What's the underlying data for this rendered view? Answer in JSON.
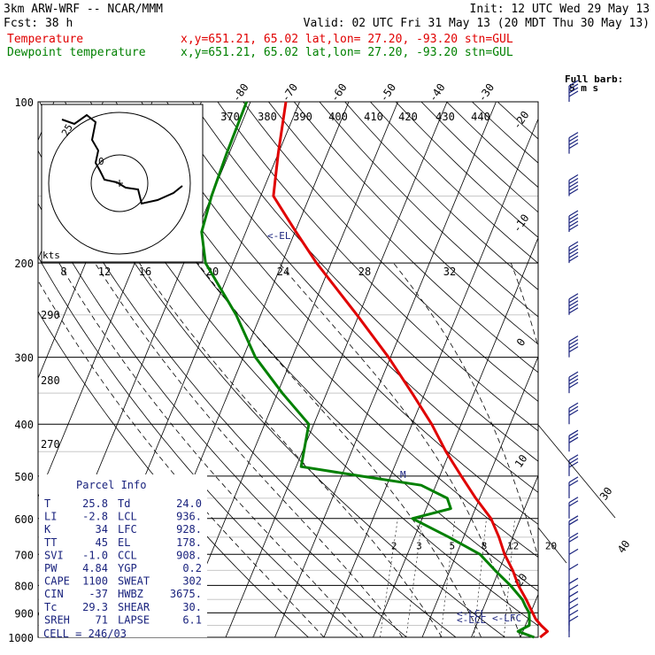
{
  "header": {
    "model": "3km ARW-WRF -- NCAR/MMM",
    "forecast": "Fcst:   38 h",
    "init": "Init: 12 UTC Wed 29 May 13",
    "valid": "Valid: 02 UTC Fri 31 May 13 (20 MDT Thu 30 May 13)"
  },
  "legend": [
    {
      "name": "Temperature",
      "info": "x,y=651.21, 65.02   lat,lon= 27.20, -93.20  stn=GUL",
      "color": "#e00000"
    },
    {
      "name": "Dewpoint temperature",
      "info": "x,y=651.21, 65.02   lat,lon= 27.20, -93.20  stn=GUL",
      "color": "#008000"
    }
  ],
  "barb_legend": {
    "title": "Full barb:",
    "unit": "5 m s"
  },
  "hodograph": {
    "unit": "kts",
    "ring_labels": [
      "25",
      "0"
    ],
    "colors": {
      "ring": "#000000",
      "trace": "#000000"
    }
  },
  "mixing_ratio_labels": [
    "2",
    "3",
    "5",
    "8",
    "12",
    "20"
  ],
  "theta_top_labels": [
    "370",
    "380",
    "390",
    "400",
    "410",
    "420",
    "430",
    "440"
  ],
  "theta_mid_labels": [
    "8",
    "12",
    "16",
    "20",
    "24",
    "28",
    "32"
  ],
  "theta_left_labels": [
    "290",
    "280",
    "270"
  ],
  "el_marker": "<-EL",
  "lcl_markers": [
    "<-LCL",
    "<-LCL",
    "<-LFC"
  ],
  "parcel_marker": "M",
  "parcel_info": {
    "title": "Parcel Info",
    "rows": [
      [
        "T",
        "25.8",
        "Td",
        "24.0"
      ],
      [
        "LI",
        "-2.8",
        "LCL",
        "936."
      ],
      [
        "K",
        "34",
        "LFC",
        "928."
      ],
      [
        "TT",
        "45",
        "EL",
        "178."
      ],
      [
        "SVI",
        "-1.0",
        "CCL",
        "908."
      ],
      [
        "PW",
        "4.84",
        "YGP",
        "0.2"
      ],
      [
        "CAPE",
        "1100",
        "SWEAT",
        "302"
      ],
      [
        "CIN",
        "-37",
        "HWBZ",
        "3675."
      ],
      [
        "Tc",
        "29.3",
        "SHEAR",
        "30."
      ],
      [
        "SREH",
        "71",
        "LAPSE",
        "6.1"
      ]
    ],
    "cell": "CELL = 246/03"
  },
  "chart_data": {
    "type": "line",
    "title": "",
    "xlabel": "",
    "ylabel": "",
    "pressure_levels": [
      100,
      200,
      300,
      400,
      500,
      600,
      700,
      800,
      900,
      1000
    ],
    "pressure_labels": [
      "100",
      "200",
      "300",
      "400",
      "500",
      "600",
      "700",
      "800",
      "900",
      "1000"
    ],
    "skew_temp_labels": [
      "-80",
      "-70",
      "-60",
      "-50",
      "-40",
      "-30",
      "-20",
      "-10",
      "0",
      "10",
      "20",
      "30",
      "40"
    ],
    "ylim": [
      1000,
      100
    ],
    "series": [
      {
        "name": "Temperature",
        "color": "#e00000",
        "pressure": [
          1000,
          975,
          950,
          925,
          900,
          875,
          850,
          800,
          750,
          700,
          650,
          600,
          550,
          500,
          450,
          400,
          350,
          300,
          250,
          200,
          175,
          150,
          125,
          100
        ],
        "temp": [
          24.0,
          25.0,
          23.2,
          21.6,
          20.4,
          19.2,
          18.0,
          15.2,
          12.8,
          9.8,
          7.2,
          4.0,
          -0.8,
          -5.6,
          -10.8,
          -16.0,
          -22.6,
          -30.4,
          -40.4,
          -53.0,
          -59.8,
          -67.4,
          -70.0,
          -72.8
        ]
      },
      {
        "name": "Dewpoint temperature",
        "color": "#008000",
        "pressure": [
          1000,
          975,
          950,
          925,
          900,
          875,
          850,
          800,
          750,
          700,
          650,
          600,
          575,
          550,
          520,
          500,
          480,
          400,
          350,
          300,
          250,
          200,
          175,
          150,
          125,
          100
        ],
        "temp": [
          22.8,
          19.0,
          20.8,
          20.3,
          19.7,
          18.4,
          17.2,
          13.6,
          9.2,
          4.8,
          -3.0,
          -12.0,
          -5.0,
          -6.6,
          -13.0,
          -26.0,
          -39.0,
          -41.0,
          -49.0,
          -57.5,
          -65.0,
          -75.6,
          -79.0,
          -80.0,
          -80.5,
          -80.8
        ]
      }
    ],
    "wind_barbs": {
      "pressure": [
        1000,
        975,
        950,
        925,
        900,
        875,
        850,
        800,
        750,
        700,
        650,
        600,
        550,
        500,
        450,
        400,
        350,
        300,
        250,
        200,
        175,
        150,
        125,
        100
      ],
      "barbs": [
        1,
        1,
        1,
        1,
        1,
        1,
        1,
        1,
        1,
        2,
        2,
        2,
        2,
        3,
        3,
        3,
        4,
        4,
        5,
        5,
        5,
        5,
        4,
        4
      ]
    }
  }
}
